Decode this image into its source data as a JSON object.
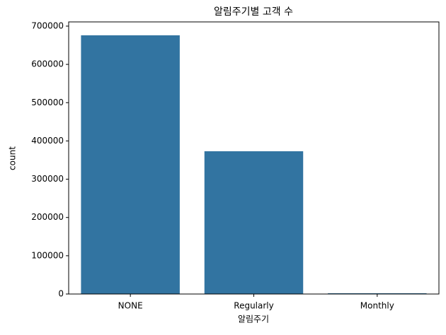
{
  "chart_data": {
    "type": "bar",
    "title": "알림주기별 고객 수",
    "x_label": "알림주기",
    "y_label": "count",
    "categories": [
      "NONE",
      "Regularly",
      "Monthly"
    ],
    "values": [
      676000,
      373000,
      2000
    ],
    "color": "#3274a1",
    "ylim": [
      0,
      711000
    ],
    "yticks": [
      0,
      100000,
      200000,
      300000,
      400000,
      500000,
      600000,
      700000
    ]
  }
}
